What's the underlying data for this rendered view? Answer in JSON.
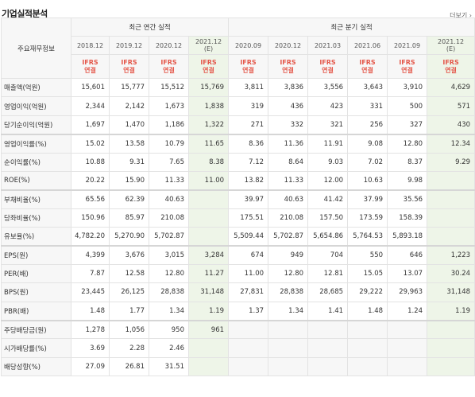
{
  "title": "기업실적분석",
  "more_link": "더보기",
  "table": {
    "corner": "주요재무정보",
    "annual_group": "최근 연간 실적",
    "quarter_group": "최근 분기 실적",
    "periods": [
      "2018.12",
      "2019.12",
      "2020.12",
      "2021.12\n(E)",
      "2020.09",
      "2020.12",
      "2021.03",
      "2021.06",
      "2021.09",
      "2021.12\n(E)"
    ],
    "ifrs": [
      "IFRS\n연결",
      "IFRS\n연결",
      "IFRS\n연결",
      "IFRS\n연결",
      "IFRS\n연결",
      "IFRS\n연결",
      "IFRS\n연결",
      "IFRS\n연결",
      "IFRS\n연결",
      "IFRS\n연결"
    ],
    "rows": [
      {
        "label": "매출액(억원)",
        "values": [
          "15,601",
          "15,777",
          "15,512",
          "15,769",
          "3,811",
          "3,836",
          "3,556",
          "3,643",
          "3,910",
          "4,629"
        ]
      },
      {
        "label": "영업이익(억원)",
        "values": [
          "2,344",
          "2,142",
          "1,673",
          "1,838",
          "319",
          "436",
          "423",
          "331",
          "500",
          "571"
        ]
      },
      {
        "label": "당기순이익(억원)",
        "values": [
          "1,697",
          "1,470",
          "1,186",
          "1,322",
          "271",
          "332",
          "321",
          "256",
          "327",
          "430"
        ]
      },
      {
        "label": "영업이익률(%)",
        "values": [
          "15.02",
          "13.58",
          "10.79",
          "11.65",
          "8.36",
          "11.36",
          "11.91",
          "9.08",
          "12.80",
          "12.34"
        ]
      },
      {
        "label": "순이익률(%)",
        "values": [
          "10.88",
          "9.31",
          "7.65",
          "8.38",
          "7.12",
          "8.64",
          "9.03",
          "7.02",
          "8.37",
          "9.29"
        ]
      },
      {
        "label": "ROE(%)",
        "values": [
          "20.22",
          "15.90",
          "11.33",
          "11.00",
          "13.82",
          "11.33",
          "12.00",
          "10.63",
          "9.98",
          ""
        ]
      },
      {
        "label": "부채비율(%)",
        "values": [
          "65.56",
          "62.39",
          "40.63",
          "",
          "39.97",
          "40.63",
          "41.42",
          "37.99",
          "35.56",
          ""
        ]
      },
      {
        "label": "당좌비율(%)",
        "values": [
          "150.96",
          "85.97",
          "210.08",
          "",
          "175.51",
          "210.08",
          "157.50",
          "173.59",
          "158.39",
          ""
        ]
      },
      {
        "label": "유보율(%)",
        "values": [
          "4,782.20",
          "5,270.90",
          "5,702.87",
          "",
          "5,509.44",
          "5,702.87",
          "5,654.86",
          "5,764.53",
          "5,893.18",
          ""
        ]
      },
      {
        "label": "EPS(원)",
        "values": [
          "4,399",
          "3,676",
          "3,015",
          "3,284",
          "674",
          "949",
          "704",
          "550",
          "646",
          "1,223"
        ]
      },
      {
        "label": "PER(배)",
        "values": [
          "7.87",
          "12.58",
          "12.80",
          "11.27",
          "11.00",
          "12.80",
          "12.81",
          "15.05",
          "13.07",
          "30.24"
        ]
      },
      {
        "label": "BPS(원)",
        "values": [
          "23,445",
          "26,125",
          "28,838",
          "31,148",
          "27,831",
          "28,838",
          "28,685",
          "29,222",
          "29,963",
          "31,148"
        ]
      },
      {
        "label": "PBR(배)",
        "values": [
          "1.48",
          "1.77",
          "1.34",
          "1.19",
          "1.37",
          "1.34",
          "1.41",
          "1.48",
          "1.24",
          "1.19"
        ]
      },
      {
        "label": "주당배당금(원)",
        "values": [
          "1,278",
          "1,056",
          "950",
          "961",
          "",
          "",
          "",
          "",
          "",
          ""
        ]
      },
      {
        "label": "시가배당률(%)",
        "values": [
          "3.69",
          "2.28",
          "2.46",
          "",
          "",
          "",
          "",
          "",
          "",
          ""
        ]
      },
      {
        "label": "배당성향(%)",
        "values": [
          "27.09",
          "26.81",
          "31.51",
          "",
          "",
          "",
          "",
          "",
          "",
          ""
        ]
      }
    ]
  }
}
